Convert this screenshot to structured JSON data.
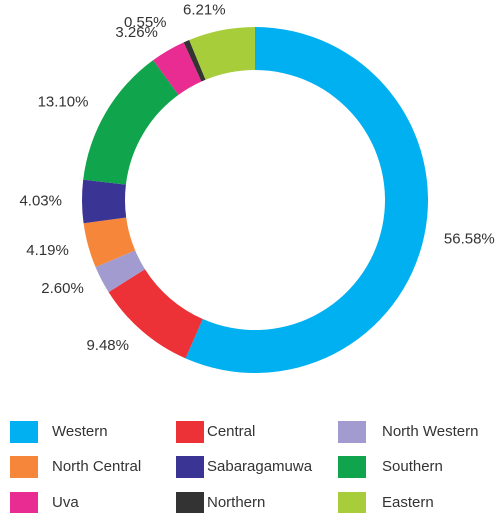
{
  "chart_data": {
    "type": "donut",
    "categories": [
      "Western",
      "Central",
      "North Western",
      "North Central",
      "Sabaragamuwa",
      "Southern",
      "Uva",
      "Northern",
      "Eastern"
    ],
    "values": [
      56.58,
      9.48,
      2.6,
      4.19,
      4.03,
      13.1,
      3.26,
      0.55,
      6.21
    ],
    "value_labels": [
      "56.58%",
      "9.48%",
      "2.60%",
      "4.19%",
      "4.03%",
      "13.10%",
      "3.26%",
      "0.55%",
      "6.21%"
    ],
    "colors": [
      "#00b0f0",
      "#ec3237",
      "#a29bd0",
      "#f6863a",
      "#3a3494",
      "#10a54c",
      "#e92c92",
      "#333333",
      "#a7cd3a"
    ],
    "legend": "bottom"
  }
}
